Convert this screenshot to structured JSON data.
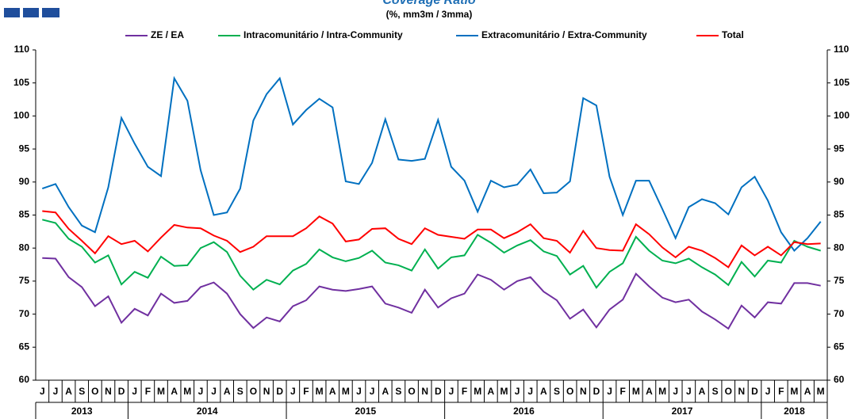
{
  "chart_data": {
    "type": "line",
    "title": "Coverage Ratio",
    "subtitle": "(%, mm3m / 3mma)",
    "categories": [
      "J",
      "J",
      "A",
      "S",
      "O",
      "N",
      "D",
      "J",
      "F",
      "M",
      "A",
      "M",
      "J",
      "J",
      "A",
      "S",
      "O",
      "N",
      "D",
      "J",
      "F",
      "M",
      "A",
      "M",
      "J",
      "J",
      "A",
      "S",
      "O",
      "N",
      "D",
      "J",
      "F",
      "M",
      "A",
      "M",
      "J",
      "J",
      "A",
      "S",
      "O",
      "N",
      "D",
      "J",
      "F",
      "M",
      "A",
      "M",
      "J",
      "J",
      "A",
      "S",
      "O",
      "N",
      "D",
      "J",
      "F",
      "M",
      "A",
      "M"
    ],
    "x_groups": [
      {
        "label": "2013",
        "count": 7
      },
      {
        "label": "2014",
        "count": 12
      },
      {
        "label": "2015",
        "count": 12
      },
      {
        "label": "2016",
        "count": 12
      },
      {
        "label": "2017",
        "count": 12
      },
      {
        "label": "2018",
        "count": 5
      }
    ],
    "series": [
      {
        "name": "ZE / EA",
        "color": "#7030a0",
        "values": [
          78.5,
          78.4,
          75.6,
          74.1,
          71.2,
          72.7,
          68.7,
          70.8,
          69.8,
          73.1,
          71.7,
          72,
          74.1,
          74.8,
          73.1,
          70,
          67.9,
          69.5,
          68.9,
          71.2,
          72.1,
          74.2,
          73.7,
          73.5,
          73.8,
          74.2,
          71.6,
          71,
          70.2,
          73.7,
          71,
          72.4,
          73.1,
          76,
          75.2,
          73.7,
          75,
          75.6,
          73.4,
          72.1,
          69.3,
          70.7,
          68,
          70.7,
          72.2,
          76.1,
          74.2,
          72.5,
          71.8,
          72.2,
          70.4,
          69.2,
          67.8,
          71.3,
          69.5,
          71.8,
          71.6,
          74.7,
          74.7,
          74.3
        ]
      },
      {
        "name": "Intracomunitário / Intra-Community",
        "color": "#00b050",
        "values": [
          84.3,
          83.8,
          81.4,
          80.2,
          77.8,
          78.9,
          74.5,
          76.4,
          75.5,
          78.7,
          77.3,
          77.4,
          80,
          80.9,
          79.4,
          75.8,
          73.7,
          75.2,
          74.5,
          76.6,
          77.6,
          79.8,
          78.6,
          78,
          78.5,
          79.6,
          77.8,
          77.4,
          76.6,
          79.8,
          76.9,
          78.6,
          78.9,
          82,
          80.8,
          79.3,
          80.4,
          81.2,
          79.5,
          78.8,
          76,
          77.3,
          74,
          76.4,
          77.7,
          81.7,
          79.6,
          78.1,
          77.7,
          78.4,
          77.1,
          76,
          74.4,
          77.9,
          75.7,
          78.1,
          77.8,
          81.1,
          80.2,
          79.6
        ]
      },
      {
        "name": "Extracomunitário / Extra-Community",
        "color": "#0070c0",
        "values": [
          89,
          89.7,
          86.2,
          83.4,
          82.4,
          89.2,
          99.7,
          95.8,
          92.3,
          90.9,
          105.7,
          102.3,
          91.8,
          85,
          85.4,
          89,
          99.3,
          103.3,
          105.7,
          98.7,
          100.9,
          102.6,
          101.3,
          90.1,
          89.7,
          92.9,
          99.5,
          93.4,
          93.2,
          93.5,
          99.4,
          92.3,
          90.2,
          85.5,
          90.2,
          89.2,
          89.6,
          91.9,
          88.3,
          88.4,
          90.1,
          102.7,
          101.6,
          90.8,
          85,
          90.2,
          90.2,
          85.9,
          81.5,
          86.2,
          87.4,
          86.8,
          85.1,
          89.2,
          90.8,
          87.2,
          82.4,
          79.6,
          81.5,
          84
        ]
      },
      {
        "name": "Total",
        "color": "#ff0000",
        "values": [
          85.6,
          85.4,
          82.9,
          81.1,
          79.2,
          81.8,
          80.6,
          81.1,
          79.5,
          81.6,
          83.5,
          83.1,
          83,
          81.9,
          81.1,
          79.4,
          80.2,
          81.8,
          81.8,
          81.8,
          83,
          84.8,
          83.7,
          81,
          81.3,
          82.9,
          83,
          81.4,
          80.6,
          83,
          82,
          81.7,
          81.4,
          82.8,
          82.8,
          81.5,
          82.4,
          83.6,
          81.5,
          81.1,
          79.3,
          82.6,
          80,
          79.7,
          79.6,
          83.6,
          82.1,
          80.1,
          78.6,
          80.2,
          79.6,
          78.5,
          77.1,
          80.4,
          78.9,
          80.2,
          78.9,
          80.9,
          80.6,
          80.7
        ]
      }
    ],
    "ylim": [
      60,
      110
    ],
    "yticks": [
      60,
      65,
      70,
      75,
      80,
      85,
      90,
      95,
      100,
      105,
      110
    ],
    "y2lim": [
      60,
      110
    ],
    "y2ticks": [
      60,
      65,
      70,
      75,
      80,
      85,
      90,
      95,
      100,
      105,
      110
    ],
    "legend": "top"
  }
}
